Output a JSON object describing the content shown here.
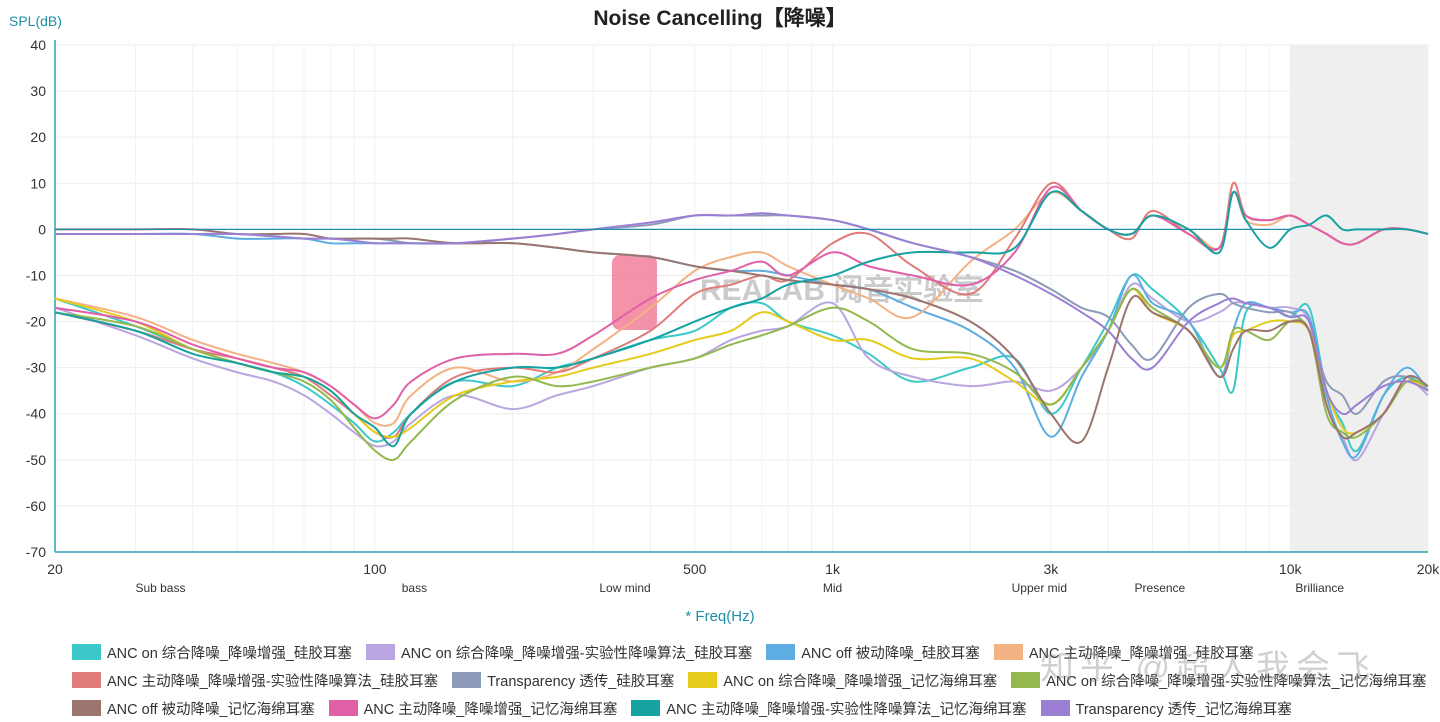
{
  "chart_data": {
    "type": "line",
    "title": "Noise Cancelling【降噪】",
    "ylabel": "SPL(dB)",
    "xlabel": "* Freq(Hz)",
    "xscale": "log",
    "xlim": [
      20,
      20000
    ],
    "ylim": [
      -70,
      40
    ],
    "yticks": [
      40,
      30,
      20,
      10,
      0,
      -10,
      -20,
      -30,
      -40,
      -50,
      -60,
      -70
    ],
    "xticks": [
      {
        "v": 20,
        "label": "20"
      },
      {
        "v": 100,
        "label": "100"
      },
      {
        "v": 500,
        "label": "500"
      },
      {
        "v": 1000,
        "label": "1k"
      },
      {
        "v": 3000,
        "label": "3k"
      },
      {
        "v": 10000,
        "label": "10k"
      },
      {
        "v": 20000,
        "label": "20k"
      }
    ],
    "bands": [
      {
        "v": 34,
        "label": "Sub bass"
      },
      {
        "v": 122,
        "label": "bass"
      },
      {
        "v": 352,
        "label": "Low mind"
      },
      {
        "v": 1000,
        "label": "Mid"
      },
      {
        "v": 2830,
        "label": "Upper mid"
      },
      {
        "v": 5190,
        "label": "Presence"
      },
      {
        "v": 11600,
        "label": "Brilliance"
      }
    ],
    "shaded_region": [
      10000,
      20000
    ],
    "reference_line": 0,
    "grid": true,
    "legend_position": "bottom",
    "x": [
      20,
      30,
      40,
      50,
      60,
      70,
      80,
      90,
      100,
      110,
      120,
      150,
      200,
      250,
      300,
      400,
      500,
      600,
      700,
      800,
      1000,
      1200,
      1500,
      2000,
      2500,
      3000,
      3500,
      4000,
      4500,
      5000,
      6000,
      7000,
      7500,
      8000,
      9000,
      10000,
      11000,
      12000,
      13000,
      14000,
      16000,
      18000,
      20000
    ],
    "series": [
      {
        "name": "ANC on 综合降噪_降噪增强_硅胶耳塞",
        "color": "#3CC8C8",
        "values": [
          -15,
          -21,
          -26,
          -29,
          -31,
          -34,
          -38,
          -42,
          -46,
          -44,
          -40,
          -33,
          -34,
          -30,
          -28,
          -24,
          -22,
          -17,
          -16,
          -20,
          -23,
          -27,
          -33,
          -30,
          -28,
          -40,
          -30,
          -20,
          -10,
          -13,
          -20,
          -30,
          -35,
          -18,
          -17,
          -19,
          -17,
          -35,
          -42,
          -48,
          -36,
          -32,
          -35
        ]
      },
      {
        "name": "ANC on 综合降噪_降噪增强-实验性降噪算法_硅胶耳塞",
        "color": "#B9A6E0",
        "values": [
          -17,
          -23,
          -28,
          -31,
          -33,
          -36,
          -40,
          -44,
          -47,
          -46,
          -42,
          -36,
          -39,
          -36,
          -34,
          -30,
          -28,
          -24,
          -22,
          -21,
          -16,
          -28,
          -32,
          -34,
          -33,
          -35,
          -30,
          -22,
          -12,
          -15,
          -20,
          -18,
          -16,
          -16,
          -17,
          -17,
          -20,
          -38,
          -45,
          -50,
          -40,
          -33,
          -36
        ]
      },
      {
        "name": "ANC off 被动降噪_硅胶耳塞",
        "color": "#5DADE2",
        "values": [
          -1,
          -1,
          -1,
          -2,
          -2,
          -2,
          -3,
          -3,
          -3,
          -3,
          -3,
          -3,
          -3,
          -4,
          -5,
          -6,
          -8,
          -9,
          -9,
          -10,
          -12,
          -13,
          -17,
          -22,
          -30,
          -45,
          -32,
          -22,
          -10,
          -16,
          -20,
          -32,
          -22,
          -16,
          -17,
          -18,
          -19,
          -36,
          -46,
          -49,
          -36,
          -30,
          -35
        ]
      },
      {
        "name": "ANC 主动降噪_降噪增强_硅胶耳塞",
        "color": "#F4B183",
        "values": [
          -15,
          -19,
          -24,
          -27,
          -29,
          -31,
          -34,
          -38,
          -42,
          -42,
          -36,
          -30,
          -33,
          -31,
          -26,
          -17,
          -9,
          -6,
          -5,
          -8,
          -12,
          -15,
          -19,
          -7,
          0,
          8,
          4,
          0,
          -1,
          3,
          0,
          -4,
          8,
          2,
          1,
          3,
          1,
          -1,
          -3,
          -3,
          0,
          0,
          -1
        ]
      },
      {
        "name": "ANC 主动降噪_降噪增强-实验性降噪算法_硅胶耳塞",
        "color": "#E07B7B",
        "values": [
          -18,
          -22,
          -26,
          -28,
          -30,
          -32,
          -36,
          -40,
          -44,
          -45,
          -40,
          -32,
          -30,
          -31,
          -28,
          -22,
          -14,
          -12,
          -10,
          -11,
          -3,
          -1,
          -8,
          -14,
          -2,
          10,
          4,
          0,
          -2,
          4,
          -1,
          -4,
          10,
          3,
          2,
          3,
          1,
          -1,
          -3,
          -3,
          0,
          0,
          -1
        ]
      },
      {
        "name": "Transparency 透传_硅胶耳塞",
        "color": "#8C9BB8",
        "values": [
          -1,
          -1,
          -1,
          -1,
          -1.5,
          -2,
          -2,
          -2,
          -2,
          -2.5,
          -3,
          -3,
          -2,
          -1,
          0,
          1,
          3,
          3,
          3,
          3,
          2,
          0,
          -3,
          -6,
          -9,
          -13,
          -17,
          -19,
          -25,
          -28,
          -17,
          -14,
          -16,
          -17,
          -18,
          -18,
          -22,
          -33,
          -36,
          -40,
          -33,
          -32,
          -35
        ]
      },
      {
        "name": "ANC on 综合降噪_降噪增强_记忆海绵耳塞",
        "color": "#E5CB1A",
        "values": [
          -15,
          -20,
          -26,
          -29,
          -31,
          -32,
          -35,
          -40,
          -44,
          -45,
          -43,
          -36,
          -33,
          -32,
          -30,
          -27,
          -24,
          -22,
          -18,
          -20,
          -24,
          -24,
          -28,
          -28,
          -33,
          -38,
          -30,
          -22,
          -13,
          -18,
          -22,
          -30,
          -23,
          -22,
          -20,
          -20,
          -22,
          -35,
          -43,
          -44,
          -40,
          -33,
          -35
        ]
      },
      {
        "name": "ANC on 综合降噪_降噪增强-实验性降噪算法_记忆海绵耳塞",
        "color": "#93B84E",
        "values": [
          -18,
          -21,
          -26,
          -29,
          -31,
          -33,
          -37,
          -43,
          -48,
          -50,
          -46,
          -37,
          -32,
          -34,
          -33,
          -30,
          -28,
          -25,
          -23,
          -21,
          -17,
          -20,
          -26,
          -27,
          -31,
          -38,
          -30,
          -22,
          -13,
          -17,
          -22,
          -30,
          -22,
          -22,
          -24,
          -20,
          -22,
          -40,
          -44,
          -45,
          -40,
          -33,
          -34
        ]
      },
      {
        "name": "ANC off 被动降噪_记忆海绵耳塞",
        "color": "#9C7470",
        "values": [
          0,
          0,
          0,
          -1,
          -1,
          -1,
          -2,
          -2,
          -2,
          -2,
          -2,
          -3,
          -3,
          -4,
          -5,
          -6,
          -8,
          -9,
          -10,
          -11,
          -12,
          -13,
          -15,
          -20,
          -28,
          -40,
          -46,
          -30,
          -15,
          -18,
          -22,
          -32,
          -26,
          -22,
          -22,
          -20,
          -22,
          -38,
          -45,
          -44,
          -40,
          -32,
          -34
        ]
      },
      {
        "name": "ANC 主动降噪_降噪增强_记忆海绵耳塞",
        "color": "#E060A8",
        "values": [
          -17,
          -20,
          -25,
          -28,
          -30,
          -31,
          -34,
          -38,
          -41,
          -38,
          -33,
          -28,
          -27,
          -27,
          -23,
          -15,
          -11,
          -9,
          -7,
          -10,
          -5,
          -8,
          -10,
          -12,
          -5,
          9,
          4,
          0,
          -1,
          3,
          -1,
          -4,
          8,
          3,
          2,
          3,
          1,
          -1,
          -3,
          -3,
          0,
          0,
          -1
        ]
      },
      {
        "name": "ANC 主动降噪_降噪增强-实验性降噪算法_记忆海绵耳塞",
        "color": "#17A2A2",
        "values": [
          -18,
          -22,
          -27,
          -29,
          -31,
          -32,
          -35,
          -40,
          -43,
          -47,
          -40,
          -33,
          -30,
          -30,
          -28,
          -24,
          -20,
          -17,
          -15,
          -12,
          -10,
          -7,
          -5,
          -5,
          -4,
          8,
          4,
          0,
          -1,
          3,
          0,
          -5,
          8,
          2,
          -4,
          0,
          1,
          3,
          0,
          0,
          0,
          0,
          -1
        ]
      },
      {
        "name": "Transparency 透传_记忆海绵耳塞",
        "color": "#9B7FD4",
        "values": [
          -1,
          -1,
          -1,
          -1,
          -1.5,
          -2,
          -2,
          -2.5,
          -3,
          -3,
          -3,
          -3,
          -2,
          -1,
          0,
          1.5,
          3,
          3,
          3.5,
          3,
          2,
          0,
          -3,
          -6,
          -10,
          -14,
          -18,
          -22,
          -28,
          -30,
          -20,
          -16,
          -15,
          -16,
          -17,
          -19,
          -20,
          -35,
          -40,
          -38,
          -34,
          -33,
          -35
        ]
      }
    ]
  },
  "watermarks": [
    "REALAB 阅音实验室",
    "知乎 @超人我会飞"
  ]
}
